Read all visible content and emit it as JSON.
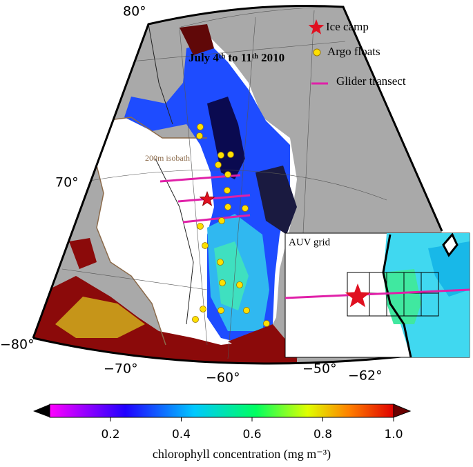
{
  "map": {
    "title": "July 4ᵗʰ to 11ᵗʰ 2010",
    "isobath_label": "200m isobath",
    "labels": {
      "lat_80": "80°",
      "lat_70": "70°",
      "lon_80": "−80°",
      "lon_70": "−70°",
      "lon_60": "−60°",
      "lon_50": "−50°"
    }
  },
  "legend": {
    "ice_camp": "Ice camp",
    "argo_floats": "Argo floats",
    "glider_transect": "Glider transect"
  },
  "inset": {
    "title": "AUV grid",
    "lon_label": "−62°"
  },
  "colorbar": {
    "label": "chlorophyll concentration (mg m⁻³)",
    "ticks": [
      0.2,
      0.4,
      0.6,
      0.8,
      {
        "value": 1,
        "label": "1.0"
      }
    ]
  }
}
